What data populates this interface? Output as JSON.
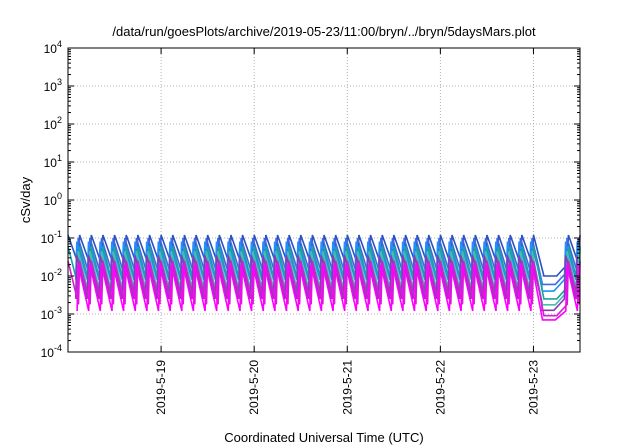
{
  "chart_data": {
    "type": "line",
    "title": "/data/run/goesPlots/archive/2019-05-23/11:00/bryn/../bryn/5daysMars.plot",
    "xlabel": "Coordinated Universal Time (UTC)",
    "ylabel": "cSv/day",
    "yscale": "log",
    "ylim": [
      0.0001,
      10000
    ],
    "xlim": [
      "2019-05-18T00:00",
      "2019-05-23T12:00"
    ],
    "x_ticks": [
      "2019-5-19",
      "2019-5-20",
      "2019-5-21",
      "2019-5-22",
      "2019-5-23"
    ],
    "y_ticks": [
      {
        "base": "10",
        "exp": "-4"
      },
      {
        "base": "10",
        "exp": "-3"
      },
      {
        "base": "10",
        "exp": "-2"
      },
      {
        "base": "10",
        "exp": "-1"
      },
      {
        "base": "10",
        "exp": "0"
      },
      {
        "base": "10",
        "exp": "1"
      },
      {
        "base": "10",
        "exp": "2"
      },
      {
        "base": "10",
        "exp": "3"
      },
      {
        "base": "10",
        "exp": "4"
      }
    ],
    "grid": true,
    "legend": "none",
    "pattern": {
      "description_free": "sawtooth",
      "period_hours": 3,
      "series_peaks": [
        0.12,
        0.1,
        0.08,
        0.06,
        0.045,
        0.035,
        0.025,
        0.02
      ],
      "series_troughs": [
        0.02,
        0.012,
        0.008,
        0.005,
        0.0035,
        0.0025,
        0.0018,
        0.0012
      ],
      "dip_start": "2019-05-23T02:00",
      "dip_end": "2019-05-23T06:00",
      "dip_low": 0.0007
    },
    "series": [
      {
        "color": "#2a52be"
      },
      {
        "color": "#4169e1"
      },
      {
        "color": "#1e90ff"
      },
      {
        "color": "#20a0a0"
      },
      {
        "color": "#40c0b0"
      },
      {
        "color": "#8a3ab9"
      },
      {
        "color": "#d020d0"
      },
      {
        "color": "#ff00ff"
      }
    ]
  }
}
